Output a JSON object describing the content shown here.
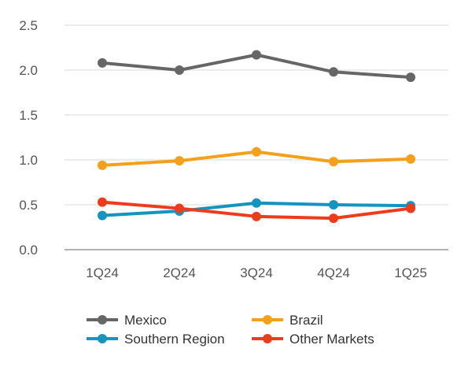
{
  "chart_data": {
    "type": "line",
    "title": "",
    "xlabel": "",
    "ylabel": "",
    "categories": [
      "1Q24",
      "2Q24",
      "3Q24",
      "4Q24",
      "1Q25"
    ],
    "ylim": [
      0,
      2.5
    ],
    "yticks": [
      "0.0",
      "0.5",
      "1.0",
      "1.5",
      "2.0",
      "2.5"
    ],
    "grid": true,
    "legend_position": "bottom",
    "series": [
      {
        "name": "Mexico",
        "color": "#666666",
        "values": [
          2.08,
          2.0,
          2.17,
          1.98,
          1.92
        ]
      },
      {
        "name": "Brazil",
        "color": "#F5A01A",
        "values": [
          0.94,
          0.99,
          1.09,
          0.98,
          1.01
        ]
      },
      {
        "name": "Southern Region",
        "color": "#1494BE",
        "values": [
          0.38,
          0.43,
          0.52,
          0.5,
          0.49
        ]
      },
      {
        "name": "Other Markets",
        "color": "#EE3B1B",
        "values": [
          0.53,
          0.46,
          0.37,
          0.35,
          0.46
        ]
      }
    ]
  }
}
